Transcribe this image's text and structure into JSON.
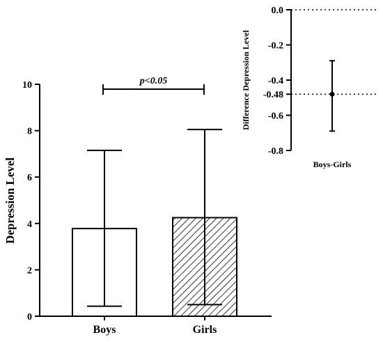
{
  "chart_data": [
    {
      "type": "bar",
      "title": "",
      "xlabel": "",
      "ylabel": "Depression Level",
      "ylim": [
        0,
        10
      ],
      "yticks": [
        "0",
        "2",
        "4",
        "6",
        "8",
        "10"
      ],
      "categories": [
        "Boys",
        "Girls"
      ],
      "values": [
        3.78,
        4.25
      ],
      "error_low": [
        0.43,
        0.5
      ],
      "error_high": [
        7.15,
        8.05
      ],
      "bar_fill": [
        "white",
        "hatched"
      ],
      "significance": {
        "label": "p<0.05",
        "between": [
          "Boys",
          "Girls"
        ]
      },
      "grid": false
    },
    {
      "type": "scatter",
      "title": "",
      "xlabel": "",
      "ylabel": "Difference Depression Level",
      "ylim": [
        -0.8,
        0.0
      ],
      "yticks": [
        "0.0",
        "-0.2",
        "-0.4",
        "-0.48",
        "-0.6",
        "-0.8"
      ],
      "categories": [
        "Boys-Girls"
      ],
      "values": [
        -0.48
      ],
      "ci_low": [
        -0.69
      ],
      "ci_high": [
        -0.29
      ],
      "reference_lines": [
        0.0,
        -0.48
      ],
      "grid": false
    }
  ]
}
